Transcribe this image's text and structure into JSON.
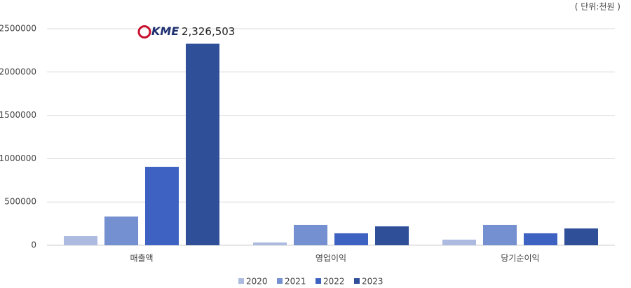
{
  "chart_data": {
    "type": "bar",
    "subtitle": "( 단위:천원 )",
    "logo": "KME",
    "categories": [
      "매출액",
      "영업이익",
      "당기순이익"
    ],
    "series": [
      {
        "name": "2020",
        "color": "#adbbe0",
        "values": [
          105000,
          32000,
          65000
        ]
      },
      {
        "name": "2021",
        "color": "#7590d0",
        "values": [
          332000,
          235000,
          235000
        ]
      },
      {
        "name": "2022",
        "color": "#3d62c2",
        "values": [
          906000,
          138000,
          138000
        ]
      },
      {
        "name": "2023",
        "color": "#2f4f99",
        "values": [
          2326503,
          218000,
          194000
        ],
        "value_labels": [
          "2,326,503",
          null,
          null
        ]
      }
    ],
    "ylim": [
      0,
      2500000
    ],
    "yticks": [
      0,
      500000,
      1000000,
      1500000,
      2000000,
      2500000
    ],
    "grid": true,
    "legend": "bottom"
  }
}
